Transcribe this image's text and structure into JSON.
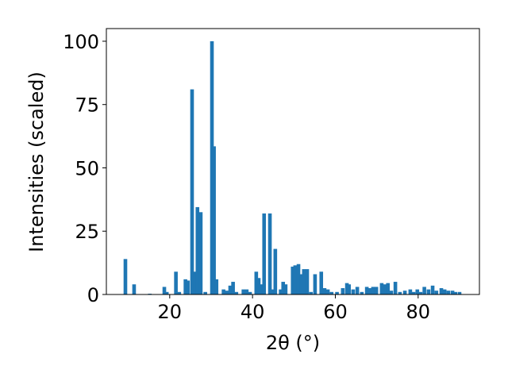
{
  "chart_data": {
    "type": "bar",
    "x_label": "2θ (°)",
    "y_label": "Intensities (scaled)",
    "color": "#1f77b4",
    "x": [
      9.3,
      11.4,
      15.2,
      18.7,
      19.3,
      21.5,
      22.3,
      23.8,
      24.4,
      25.4,
      26.1,
      26.7,
      27.5,
      28.6,
      30.2,
      30.7,
      31.3,
      33.0,
      33.8,
      34.6,
      35.3,
      36.1,
      37.8,
      38.6,
      39.4,
      40.9,
      41.5,
      42.2,
      42.8,
      44.2,
      44.9,
      45.5,
      46.8,
      47.4,
      48.0,
      49.7,
      50.3,
      51.1,
      51.8,
      52.4,
      53.2,
      54.1,
      55.1,
      56.6,
      57.4,
      58.2,
      59.1,
      60.4,
      61.8,
      62.8,
      63.3,
      64.3,
      65.3,
      66.4,
      67.6,
      68.3,
      69.1,
      69.9,
      71.2,
      72.0,
      72.7,
      73.5,
      74.5,
      75.6,
      76.8,
      78.1,
      78.9,
      79.8,
      80.6,
      81.5,
      82.5,
      83.5,
      84.4,
      85.6,
      86.4,
      87.3,
      88.3,
      89.0,
      90.0
    ],
    "values": [
      14,
      4,
      0.3,
      3,
      1,
      9,
      1,
      6,
      5.5,
      81,
      9,
      34.5,
      32.5,
      1,
      100,
      58.5,
      6,
      2,
      1.5,
      3.5,
      5,
      1,
      2,
      2,
      1,
      9,
      6.5,
      4,
      32,
      32,
      2,
      18,
      2,
      5,
      4,
      11,
      11.5,
      12,
      8,
      10,
      10,
      1,
      8,
      9,
      2.5,
      2,
      1,
      1,
      2.5,
      4.5,
      4,
      2,
      3,
      1,
      3,
      2.5,
      3,
      3,
      4.5,
      4,
      4.5,
      1.5,
      5,
      1,
      1.5,
      2,
      1,
      2,
      1,
      3,
      2,
      3.5,
      1.5,
      2.5,
      2,
      1.5,
      1.5,
      1,
      1
    ],
    "xlim": [
      4.7,
      94.8
    ],
    "ylim": [
      0,
      105
    ],
    "xticks": [
      20,
      40,
      60,
      80
    ],
    "yticks": [
      0,
      25,
      50,
      75,
      100
    ]
  }
}
